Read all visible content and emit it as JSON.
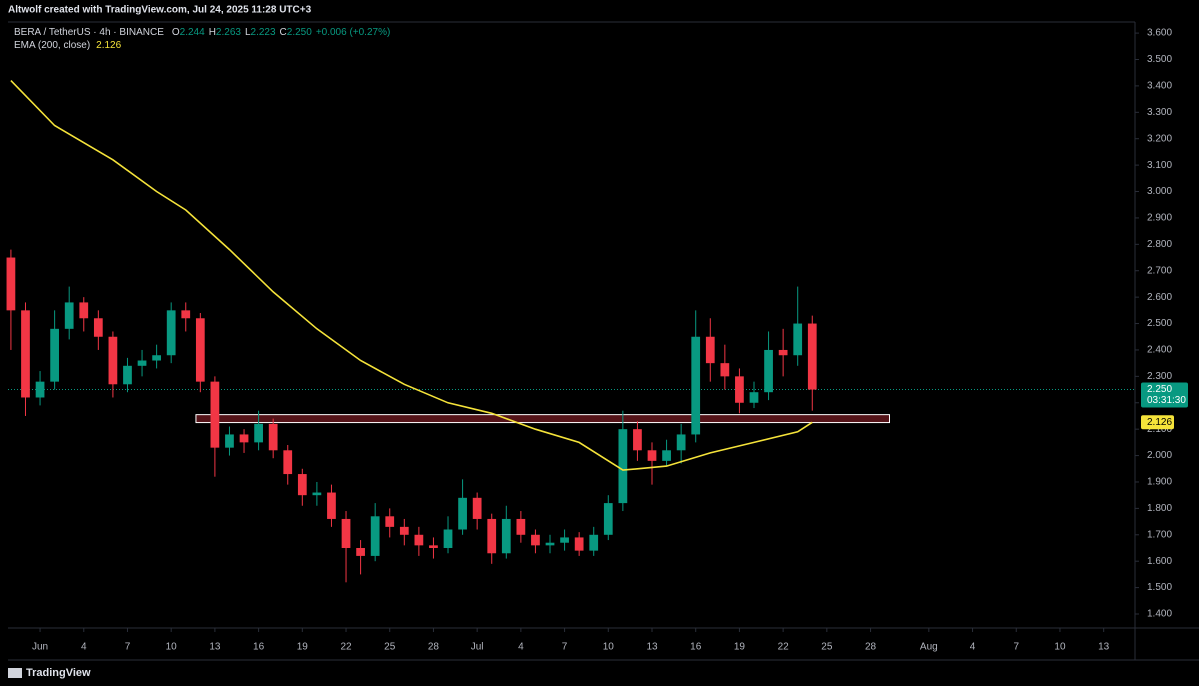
{
  "attribution": "Altwolf created with TradingView.com, Jul 24, 2025 11:28 UTC+3",
  "chart_data": {
    "type": "candlestick",
    "title": "BERA / TetherUS · 4h · BINANCE",
    "legend": {
      "o_label": "O",
      "o": "2.244",
      "h_label": "H",
      "h": "2.263",
      "l_label": "L",
      "l": "2.223",
      "c_label": "C",
      "c": "2.250",
      "change": "+0.006 (+0.27%)"
    },
    "up_color": "#089981",
    "down_color": "#f23645",
    "ohlc": {
      "x": [
        -2,
        -1,
        0,
        1,
        2,
        3,
        4,
        5,
        6,
        7,
        8,
        9,
        10,
        11,
        12,
        13,
        14,
        15,
        16,
        17,
        18,
        19,
        20,
        21,
        22,
        23,
        24,
        25,
        26,
        27,
        28,
        29,
        30,
        31,
        32,
        33,
        34,
        35,
        36,
        37,
        38,
        39,
        40,
        41,
        42,
        43,
        44,
        45,
        46,
        47,
        48,
        49,
        50,
        51,
        52,
        53
      ],
      "open": [
        2.75,
        2.55,
        2.22,
        2.28,
        2.48,
        2.58,
        2.52,
        2.45,
        2.27,
        2.34,
        2.36,
        2.38,
        2.55,
        2.52,
        2.28,
        2.03,
        2.08,
        2.05,
        2.12,
        2.02,
        1.93,
        1.85,
        1.86,
        1.76,
        1.65,
        1.62,
        1.77,
        1.73,
        1.7,
        1.66,
        1.65,
        1.72,
        1.84,
        1.76,
        1.63,
        1.76,
        1.7,
        1.66,
        1.67,
        1.69,
        1.64,
        1.7,
        1.82,
        2.1,
        2.02,
        1.98,
        2.02,
        2.08,
        2.45,
        2.35,
        2.3,
        2.2,
        2.24,
        2.4,
        2.38,
        2.5
      ],
      "high": [
        2.78,
        2.58,
        2.32,
        2.55,
        2.64,
        2.6,
        2.55,
        2.47,
        2.37,
        2.4,
        2.42,
        2.58,
        2.58,
        2.54,
        2.3,
        2.11,
        2.1,
        2.17,
        2.14,
        2.04,
        1.95,
        1.9,
        1.89,
        1.79,
        1.68,
        1.82,
        1.8,
        1.76,
        1.73,
        1.69,
        1.77,
        1.91,
        1.86,
        1.78,
        1.81,
        1.79,
        1.72,
        1.7,
        1.72,
        1.71,
        1.73,
        1.85,
        2.17,
        2.13,
        2.05,
        2.06,
        2.12,
        2.55,
        2.52,
        2.42,
        2.33,
        2.28,
        2.47,
        2.48,
        2.64,
        2.53
      ],
      "low": [
        2.4,
        2.15,
        2.19,
        2.25,
        2.44,
        2.47,
        2.4,
        2.22,
        2.24,
        2.3,
        2.33,
        2.35,
        2.47,
        2.24,
        1.92,
        2.0,
        2.01,
        2.02,
        1.99,
        1.89,
        1.81,
        1.81,
        1.73,
        1.52,
        1.55,
        1.6,
        1.69,
        1.66,
        1.62,
        1.61,
        1.63,
        1.7,
        1.72,
        1.59,
        1.61,
        1.67,
        1.63,
        1.63,
        1.64,
        1.62,
        1.62,
        1.68,
        1.79,
        1.98,
        1.89,
        1.96,
        1.97,
        2.05,
        2.28,
        2.25,
        2.16,
        2.18,
        2.21,
        2.3,
        2.34,
        2.17
      ],
      "close": [
        2.55,
        2.22,
        2.28,
        2.48,
        2.58,
        2.52,
        2.45,
        2.27,
        2.34,
        2.36,
        2.38,
        2.55,
        2.52,
        2.28,
        2.03,
        2.08,
        2.05,
        2.12,
        2.02,
        1.93,
        1.85,
        1.86,
        1.76,
        1.65,
        1.62,
        1.77,
        1.73,
        1.7,
        1.66,
        1.65,
        1.72,
        1.84,
        1.76,
        1.63,
        1.76,
        1.7,
        1.66,
        1.67,
        1.69,
        1.64,
        1.7,
        1.82,
        2.1,
        2.02,
        1.98,
        2.02,
        2.08,
        2.45,
        2.35,
        2.3,
        2.2,
        2.24,
        2.4,
        2.38,
        2.5,
        2.25
      ]
    },
    "ema": {
      "name": "EMA (200, close)",
      "value": 2.126,
      "color": "#f5e33a",
      "x": [
        -2,
        1,
        5,
        8,
        10,
        13,
        16,
        19,
        22,
        25,
        28,
        31,
        34,
        37,
        40,
        41,
        43,
        46,
        49,
        52,
        53
      ],
      "values": [
        3.42,
        3.25,
        3.12,
        3.0,
        2.93,
        2.78,
        2.62,
        2.48,
        2.36,
        2.27,
        2.2,
        2.16,
        2.1,
        2.05,
        1.945,
        1.95,
        1.96,
        2.01,
        2.05,
        2.09,
        2.126
      ]
    },
    "zone": {
      "x0": 10.7,
      "x1": 58.3,
      "low": 2.125,
      "high": 2.155,
      "color": "#f23645"
    },
    "last_price": {
      "value": 2.25,
      "label": "2.250",
      "countdown": "03:31:30"
    },
    "xlim": [
      -2.2,
      75.15
    ],
    "xticks": [
      {
        "value": 0,
        "label": "Jun"
      },
      {
        "value": 3,
        "label": "4"
      },
      {
        "value": 6,
        "label": "7"
      },
      {
        "value": 9,
        "label": "10"
      },
      {
        "value": 12,
        "label": "13"
      },
      {
        "value": 15,
        "label": "16"
      },
      {
        "value": 18,
        "label": "19"
      },
      {
        "value": 21,
        "label": "22"
      },
      {
        "value": 24,
        "label": "25"
      },
      {
        "value": 27,
        "label": "28"
      },
      {
        "value": 30,
        "label": "Jul"
      },
      {
        "value": 33,
        "label": "4"
      },
      {
        "value": 36,
        "label": "7"
      },
      {
        "value": 39,
        "label": "10"
      },
      {
        "value": 42,
        "label": "13"
      },
      {
        "value": 45,
        "label": "16"
      },
      {
        "value": 48,
        "label": "19"
      },
      {
        "value": 51,
        "label": "22"
      },
      {
        "value": 54,
        "label": "25"
      },
      {
        "value": 57,
        "label": "28"
      },
      {
        "value": 61,
        "label": "Aug"
      },
      {
        "value": 64,
        "label": "4"
      },
      {
        "value": 67,
        "label": "7"
      },
      {
        "value": 70,
        "label": "10"
      },
      {
        "value": 73,
        "label": "13"
      }
    ],
    "ylim": [
      1.347,
      3.642
    ],
    "yticks": [
      {
        "value": 1.4,
        "label": "1.400"
      },
      {
        "value": 1.5,
        "label": "1.500"
      },
      {
        "value": 1.6,
        "label": "1.600"
      },
      {
        "value": 1.7,
        "label": "1.700"
      },
      {
        "value": 1.8,
        "label": "1.800"
      },
      {
        "value": 1.9,
        "label": "1.900"
      },
      {
        "value": 2.0,
        "label": "2.000"
      },
      {
        "value": 2.1,
        "label": "2.100"
      },
      {
        "value": 2.2,
        "label": "2.200"
      },
      {
        "value": 2.3,
        "label": "2.300"
      },
      {
        "value": 2.4,
        "label": "2.400"
      },
      {
        "value": 2.5,
        "label": "2.500"
      },
      {
        "value": 2.6,
        "label": "2.600"
      },
      {
        "value": 2.7,
        "label": "2.700"
      },
      {
        "value": 2.8,
        "label": "2.800"
      },
      {
        "value": 2.9,
        "label": "2.900"
      },
      {
        "value": 3.0,
        "label": "3.000"
      },
      {
        "value": 3.1,
        "label": "3.100"
      },
      {
        "value": 3.2,
        "label": "3.200"
      },
      {
        "value": 3.3,
        "label": "3.300"
      },
      {
        "value": 3.4,
        "label": "3.400"
      },
      {
        "value": 3.5,
        "label": "3.500"
      },
      {
        "value": 3.6,
        "label": "3.600"
      }
    ]
  },
  "footer": {
    "brand": "TradingView"
  }
}
